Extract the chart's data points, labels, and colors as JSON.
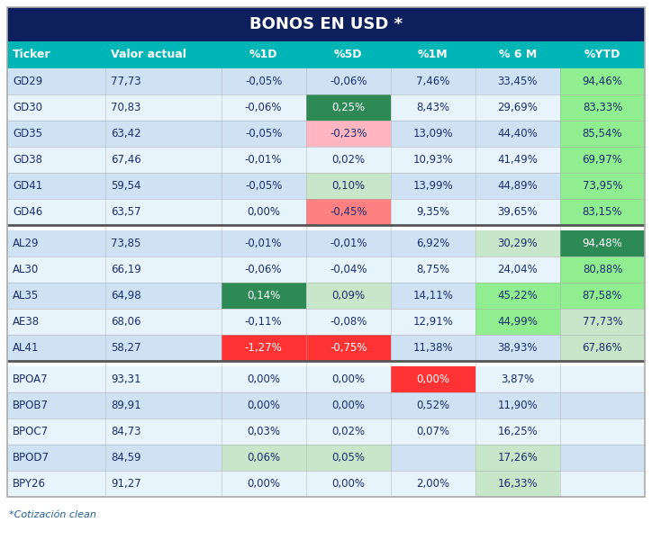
{
  "title": "BONOS EN USD *",
  "title_bg": "#0d1f5c",
  "title_color": "#ffffff",
  "header_bg": "#00b5b5",
  "header_color": "#ffffff",
  "header_labels": [
    "Ticker",
    "Valor actual",
    "%1D",
    "%5D",
    "%1M",
    "% 6 M",
    "%YTD"
  ],
  "footnote": "*Cotización clean",
  "outer_bg": "#ffffff",
  "rows": [
    {
      "ticker": "GD29",
      "valor": "77,73",
      "p1d": "-0,05%",
      "p5d": "-0,06%",
      "p1m": "7,46%",
      "p6m": "33,45%",
      "pytd": "94,46%"
    },
    {
      "ticker": "GD30",
      "valor": "70,83",
      "p1d": "-0,06%",
      "p5d": "0,25%",
      "p1m": "8,43%",
      "p6m": "29,69%",
      "pytd": "83,33%"
    },
    {
      "ticker": "GD35",
      "valor": "63,42",
      "p1d": "-0,05%",
      "p5d": "-0,23%",
      "p1m": "13,09%",
      "p6m": "44,40%",
      "pytd": "85,54%"
    },
    {
      "ticker": "GD38",
      "valor": "67,46",
      "p1d": "-0,01%",
      "p5d": "0,02%",
      "p1m": "10,93%",
      "p6m": "41,49%",
      "pytd": "69,97%"
    },
    {
      "ticker": "GD41",
      "valor": "59,54",
      "p1d": "-0,05%",
      "p5d": "0,10%",
      "p1m": "13,99%",
      "p6m": "44,89%",
      "pytd": "73,95%"
    },
    {
      "ticker": "GD46",
      "valor": "63,57",
      "p1d": "0,00%",
      "p5d": "-0,45%",
      "p1m": "9,35%",
      "p6m": "39,65%",
      "pytd": "83,15%"
    },
    {
      "ticker": "AL29",
      "valor": "73,85",
      "p1d": "-0,01%",
      "p5d": "-0,01%",
      "p1m": "6,92%",
      "p6m": "30,29%",
      "pytd": "94,48%"
    },
    {
      "ticker": "AL30",
      "valor": "66,19",
      "p1d": "-0,06%",
      "p5d": "-0,04%",
      "p1m": "8,75%",
      "p6m": "24,04%",
      "pytd": "80,88%"
    },
    {
      "ticker": "AL35",
      "valor": "64,98",
      "p1d": "0,14%",
      "p5d": "0,09%",
      "p1m": "14,11%",
      "p6m": "45,22%",
      "pytd": "87,58%"
    },
    {
      "ticker": "AE38",
      "valor": "68,06",
      "p1d": "-0,11%",
      "p5d": "-0,08%",
      "p1m": "12,91%",
      "p6m": "44,99%",
      "pytd": "77,73%"
    },
    {
      "ticker": "AL41",
      "valor": "58,27",
      "p1d": "-1,27%",
      "p5d": "-0,75%",
      "p1m": "11,38%",
      "p6m": "38,93%",
      "pytd": "67,86%"
    },
    {
      "ticker": "BPOA7",
      "valor": "93,31",
      "p1d": "0,00%",
      "p5d": "0,00%",
      "p1m": "0,00%",
      "p6m": "3,87%",
      "pytd": ""
    },
    {
      "ticker": "BPOB7",
      "valor": "89,91",
      "p1d": "0,00%",
      "p5d": "0,00%",
      "p1m": "0,52%",
      "p6m": "11,90%",
      "pytd": ""
    },
    {
      "ticker": "BPOC7",
      "valor": "84,73",
      "p1d": "0,03%",
      "p5d": "0,02%",
      "p1m": "0,07%",
      "p6m": "16,25%",
      "pytd": ""
    },
    {
      "ticker": "BPOD7",
      "valor": "84,59",
      "p1d": "0,06%",
      "p5d": "0,05%",
      "p1m": "",
      "p6m": "17,26%",
      "pytd": ""
    },
    {
      "ticker": "BPY26",
      "valor": "91,27",
      "p1d": "0,00%",
      "p5d": "0,00%",
      "p1m": "2,00%",
      "p6m": "16,33%",
      "pytd": ""
    }
  ],
  "cell_colors": {
    "GD29": {
      "p1d": null,
      "p5d": null,
      "p1m": null,
      "p6m": null,
      "pytd": "#90ee90"
    },
    "GD30": {
      "p1d": null,
      "p5d": "#2d8a55",
      "p1m": null,
      "p6m": null,
      "pytd": "#90ee90"
    },
    "GD35": {
      "p1d": null,
      "p5d": "#ffb6c1",
      "p1m": null,
      "p6m": null,
      "pytd": "#90ee90"
    },
    "GD38": {
      "p1d": null,
      "p5d": null,
      "p1m": null,
      "p6m": null,
      "pytd": "#90ee90"
    },
    "GD41": {
      "p1d": null,
      "p5d": "#c8e6c9",
      "p1m": null,
      "p6m": null,
      "pytd": "#90ee90"
    },
    "GD46": {
      "p1d": null,
      "p5d": "#ff8080",
      "p1m": null,
      "p6m": null,
      "pytd": "#90ee90"
    },
    "AL29": {
      "p1d": null,
      "p5d": null,
      "p1m": null,
      "p6m": "#c8e6c9",
      "pytd": "#2d8a55"
    },
    "AL30": {
      "p1d": null,
      "p5d": null,
      "p1m": null,
      "p6m": null,
      "pytd": "#90ee90"
    },
    "AL35": {
      "p1d": "#2d8a55",
      "p5d": "#c8e6c9",
      "p1m": null,
      "p6m": "#90ee90",
      "pytd": "#90ee90"
    },
    "AE38": {
      "p1d": null,
      "p5d": null,
      "p1m": null,
      "p6m": "#90ee90",
      "pytd": "#c8e6c9"
    },
    "AL41": {
      "p1d": "#ff3333",
      "p5d": "#ff3333",
      "p1m": null,
      "p6m": null,
      "pytd": "#c8e6c9"
    },
    "BPOA7": {
      "p1d": null,
      "p5d": null,
      "p1m": "#ff3333",
      "p6m": null,
      "pytd": null
    },
    "BPOB7": {
      "p1d": null,
      "p5d": null,
      "p1m": null,
      "p6m": null,
      "pytd": null
    },
    "BPOC7": {
      "p1d": null,
      "p5d": null,
      "p1m": null,
      "p6m": null,
      "pytd": null
    },
    "BPOD7": {
      "p1d": "#c8e6c9",
      "p5d": "#c8e6c9",
      "p1m": null,
      "p6m": "#c8e6c9",
      "pytd": null
    },
    "BPY26": {
      "p1d": null,
      "p5d": null,
      "p1m": null,
      "p6m": "#c8e6c9",
      "pytd": null
    }
  },
  "section_dividers": [
    6,
    11
  ],
  "col_text_color": "#1a2e6e",
  "white_text_cells": [
    "#2d8a55",
    "#ff3333"
  ],
  "row_bgs": [
    "#cfe2f3",
    "#e8f4fc"
  ],
  "divider_color": "#555555",
  "grid_color": "#aaaaaa",
  "border_color": "#aaaaaa"
}
